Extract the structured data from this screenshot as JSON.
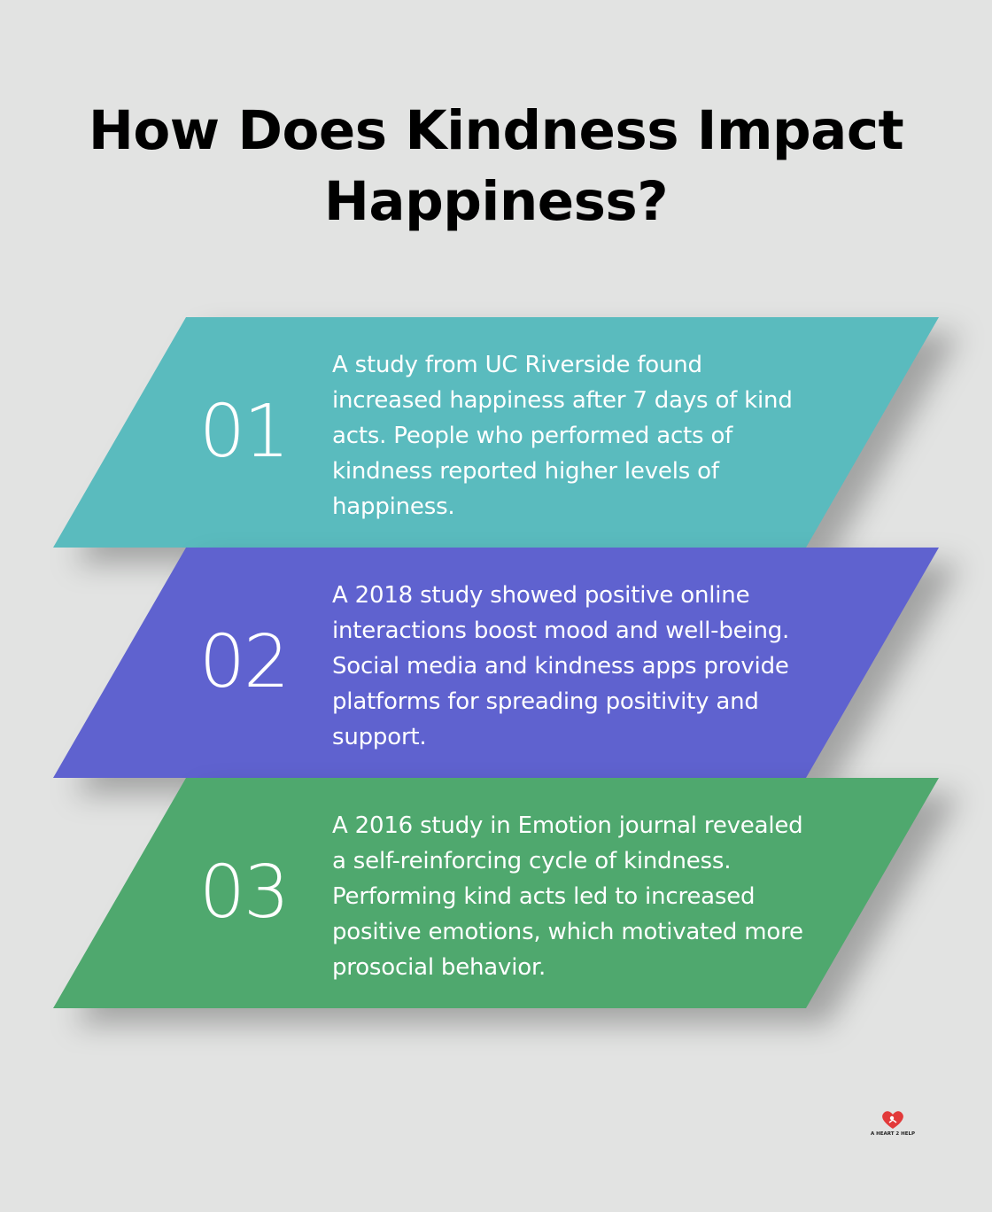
{
  "title": {
    "line1": "How Does Kindness Impact",
    "line2": "Happiness?"
  },
  "colors": {
    "background": "#e2e3e2",
    "card1": "#5abbbe",
    "card2": "#5f62cf",
    "card3": "#4fa86e",
    "logo_red": "#e23a3a"
  },
  "items": [
    {
      "number": "01",
      "text": "A study from UC Riverside found increased happiness after 7 days of kind acts. People who performed acts of kindness reported higher levels of happiness."
    },
    {
      "number": "02",
      "text": "A 2018 study showed positive online interactions boost mood and well-being. Social media and kindness apps provide platforms for spreading positivity and support."
    },
    {
      "number": "03",
      "text": "A 2016 study in Emotion journal revealed a self-reinforcing cycle of kindness. Performing kind acts led to increased positive emotions, which motivated more prosocial behavior."
    }
  ],
  "logo": {
    "text": "A HEART 2 HELP",
    "icon": "heart-logo-icon"
  }
}
